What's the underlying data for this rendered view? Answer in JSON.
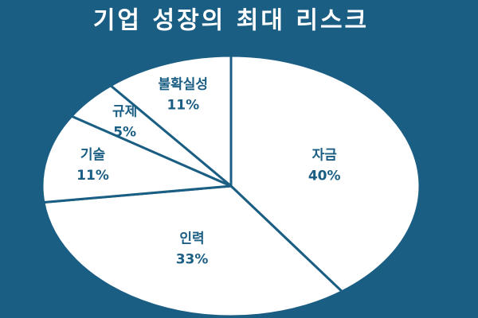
{
  "chart_data": {
    "type": "pie",
    "title": "기업 성장의 최대 리스크",
    "categories": [
      "자금",
      "인력",
      "기술",
      "규제",
      "불확실성"
    ],
    "values": [
      40,
      33,
      11,
      5,
      11
    ],
    "value_labels": [
      "40%",
      "33%",
      "11%",
      "5%",
      "11%"
    ],
    "color": "#ffffff",
    "edge_color": "#1b5e84",
    "background": "#1b5e84",
    "label_color": "#1b5e84"
  }
}
